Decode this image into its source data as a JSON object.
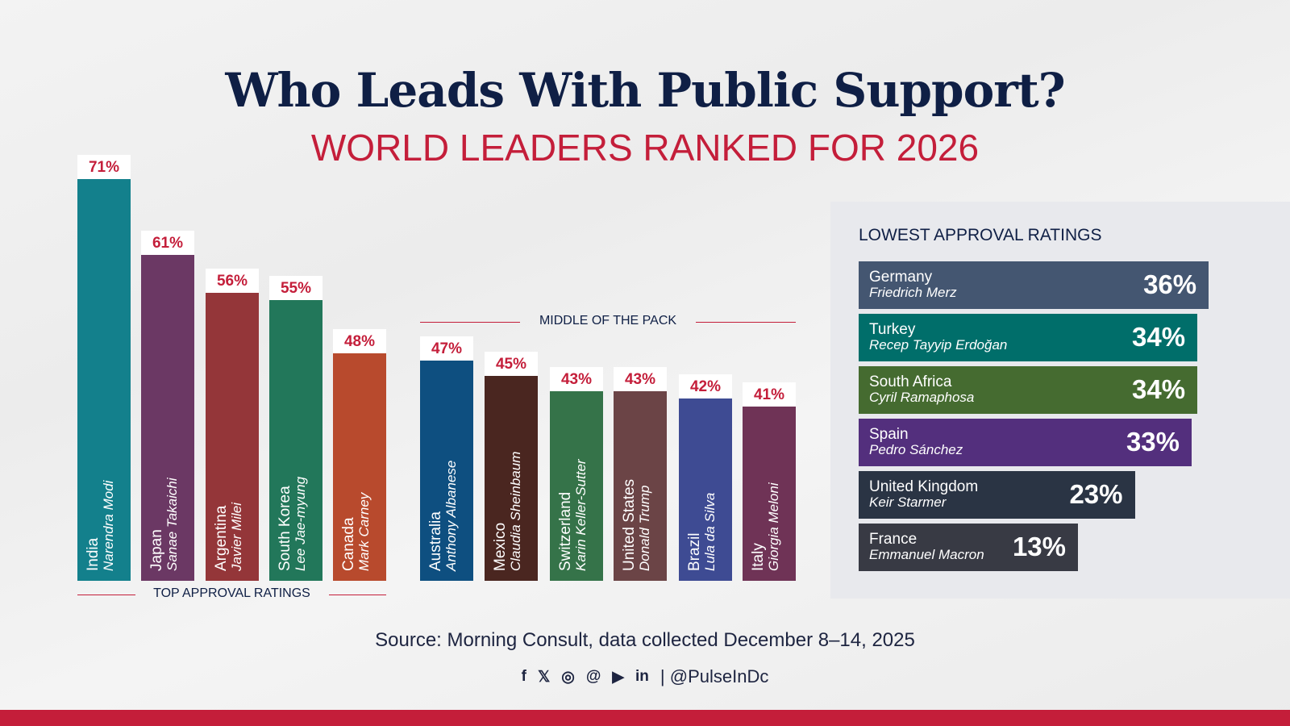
{
  "title": "Who Leads With Public Support?",
  "subtitle": "WORLD LEADERS RANKED FOR 2026",
  "chart_data": [
    {
      "type": "bar",
      "orientation": "vertical",
      "section_label": "TOP APPROVAL RATINGS",
      "unit": "%",
      "categories": [
        "India",
        "Japan",
        "Argentina",
        "South Korea",
        "Canada"
      ],
      "leaders": [
        "Narendra Modi",
        "Sanae Takaichi",
        "Javier Milei",
        "Lee Jae-myung",
        "Mark Carney"
      ],
      "values": [
        71,
        61,
        56,
        55,
        48
      ],
      "labels": [
        "71%",
        "61%",
        "56%",
        "55%",
        "48%"
      ],
      "colors": [
        "#13808c",
        "#6b3864",
        "#943639",
        "#22775a",
        "#b84a2d"
      ]
    },
    {
      "type": "bar",
      "orientation": "vertical",
      "section_label": "MIDDLE OF THE PACK",
      "unit": "%",
      "categories": [
        "Australia",
        "Mexico",
        "Switzerland",
        "United States",
        "Brazil",
        "Italy"
      ],
      "leaders": [
        "Anthony Albanese",
        "Claudia Sheinbaum",
        "Karin Keller-Sutter",
        "Donald Trump",
        "Lula da Silva",
        "Giorgia Meloni"
      ],
      "values": [
        47,
        45,
        43,
        43,
        42,
        41
      ],
      "labels": [
        "47%",
        "45%",
        "43%",
        "43%",
        "42%",
        "41%"
      ],
      "colors": [
        "#0e4f80",
        "#4a2620",
        "#357349",
        "#6b4446",
        "#3e4b93",
        "#6f3356"
      ]
    },
    {
      "type": "bar",
      "orientation": "horizontal",
      "section_label": "LOWEST APPROVAL RATINGS",
      "unit": "%",
      "categories": [
        "Germany",
        "Turkey",
        "South Africa",
        "Spain",
        "United Kingdom",
        "France"
      ],
      "leaders": [
        "Friedrich Merz",
        "Recep Tayyip Erdoğan",
        "Cyril Ramaphosa",
        "Pedro Sánchez",
        "Keir Starmer",
        "Emmanuel Macron"
      ],
      "values": [
        36,
        34,
        34,
        33,
        23,
        13
      ],
      "labels": [
        "36%",
        "34%",
        "34%",
        "33%",
        "23%",
        "13%"
      ],
      "colors": [
        "#445671",
        "#006e6a",
        "#456b30",
        "#532f7d",
        "#2a3444",
        "#383a44"
      ]
    }
  ],
  "source": "Source: Morning Consult, data collected December 8–14, 2025",
  "social": {
    "icons": [
      "facebook-icon",
      "x-icon",
      "instagram-icon",
      "threads-icon",
      "youtube-icon",
      "linkedin-icon"
    ],
    "handle": "| @PulseInDc"
  },
  "colors": {
    "title": "#0f1f45",
    "accent": "#c41e3a",
    "panel": "#e8e9ed"
  }
}
